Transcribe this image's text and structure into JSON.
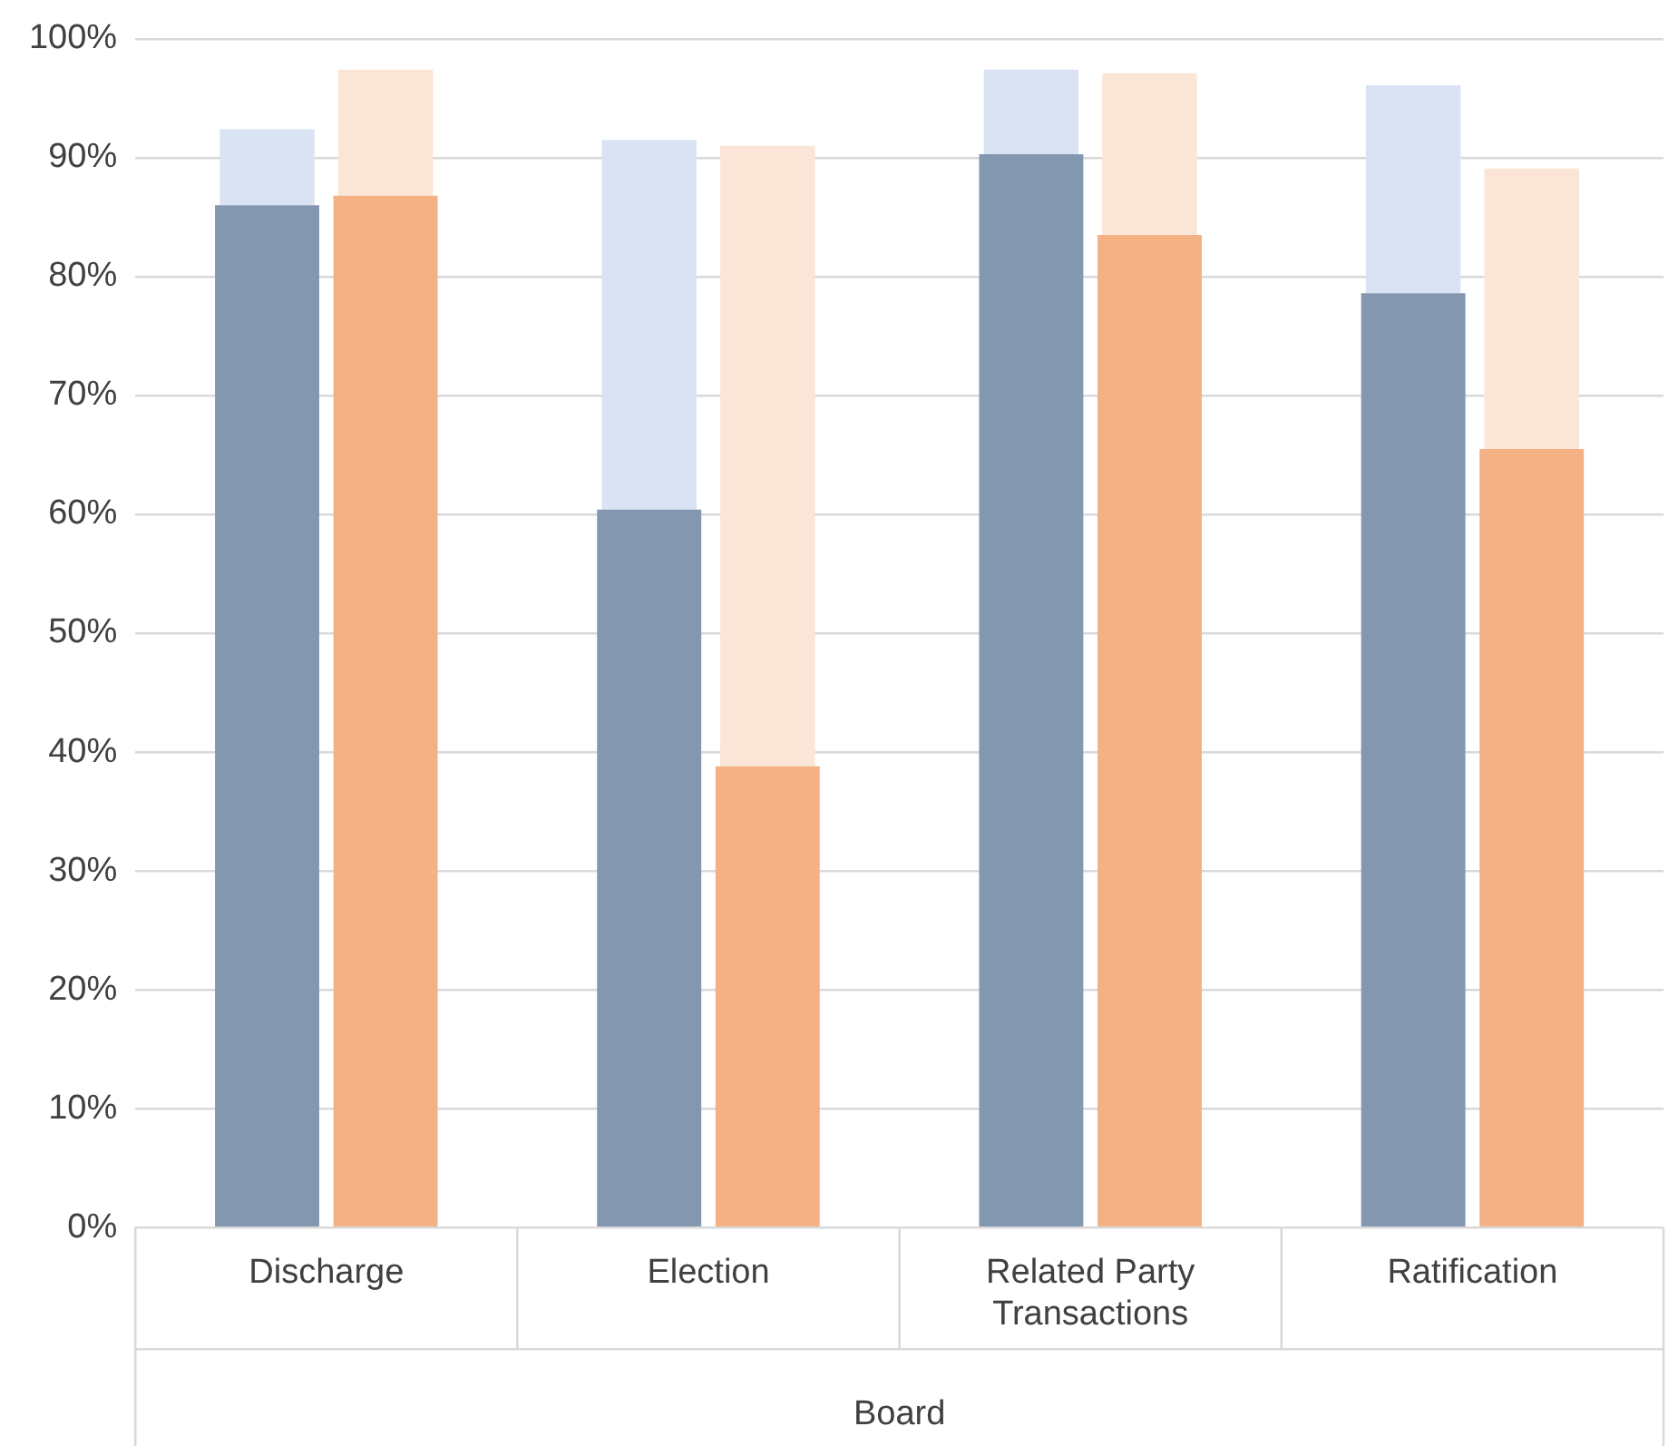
{
  "chart_data": {
    "type": "bar",
    "categories": [
      "Discharge",
      "Election",
      "Related Party Transactions",
      "Ratification"
    ],
    "xlabel": "Board",
    "series": [
      {
        "color": "#8497b0",
        "values": [
          86.0,
          60.4,
          90.3,
          78.6
        ]
      },
      {
        "color": "#dae3f3",
        "base": [
          86.0,
          60.4,
          90.3,
          78.6
        ],
        "values": [
          6.4,
          31.1,
          7.1,
          17.5
        ]
      },
      {
        "color": "#f4b183",
        "values": [
          86.8,
          38.8,
          83.5,
          65.5
        ]
      },
      {
        "color": "#fbe5d6",
        "base": [
          86.8,
          38.8,
          83.5,
          65.5
        ],
        "values": [
          10.6,
          52.2,
          13.6,
          23.6
        ]
      }
    ],
    "ylim": [
      0,
      100
    ],
    "yticks": [
      {
        "value": 0,
        "label": "0%"
      },
      {
        "value": 10,
        "label": "10%"
      },
      {
        "value": 20,
        "label": "20%"
      },
      {
        "value": 30,
        "label": "30%"
      },
      {
        "value": 40,
        "label": "40%"
      },
      {
        "value": 50,
        "label": "50%"
      },
      {
        "value": 60,
        "label": "60%"
      },
      {
        "value": 70,
        "label": "70%"
      },
      {
        "value": 80,
        "label": "80%"
      },
      {
        "value": 90,
        "label": "90%"
      },
      {
        "value": 100,
        "label": "100%"
      }
    ],
    "grid": "y",
    "legend": false
  }
}
